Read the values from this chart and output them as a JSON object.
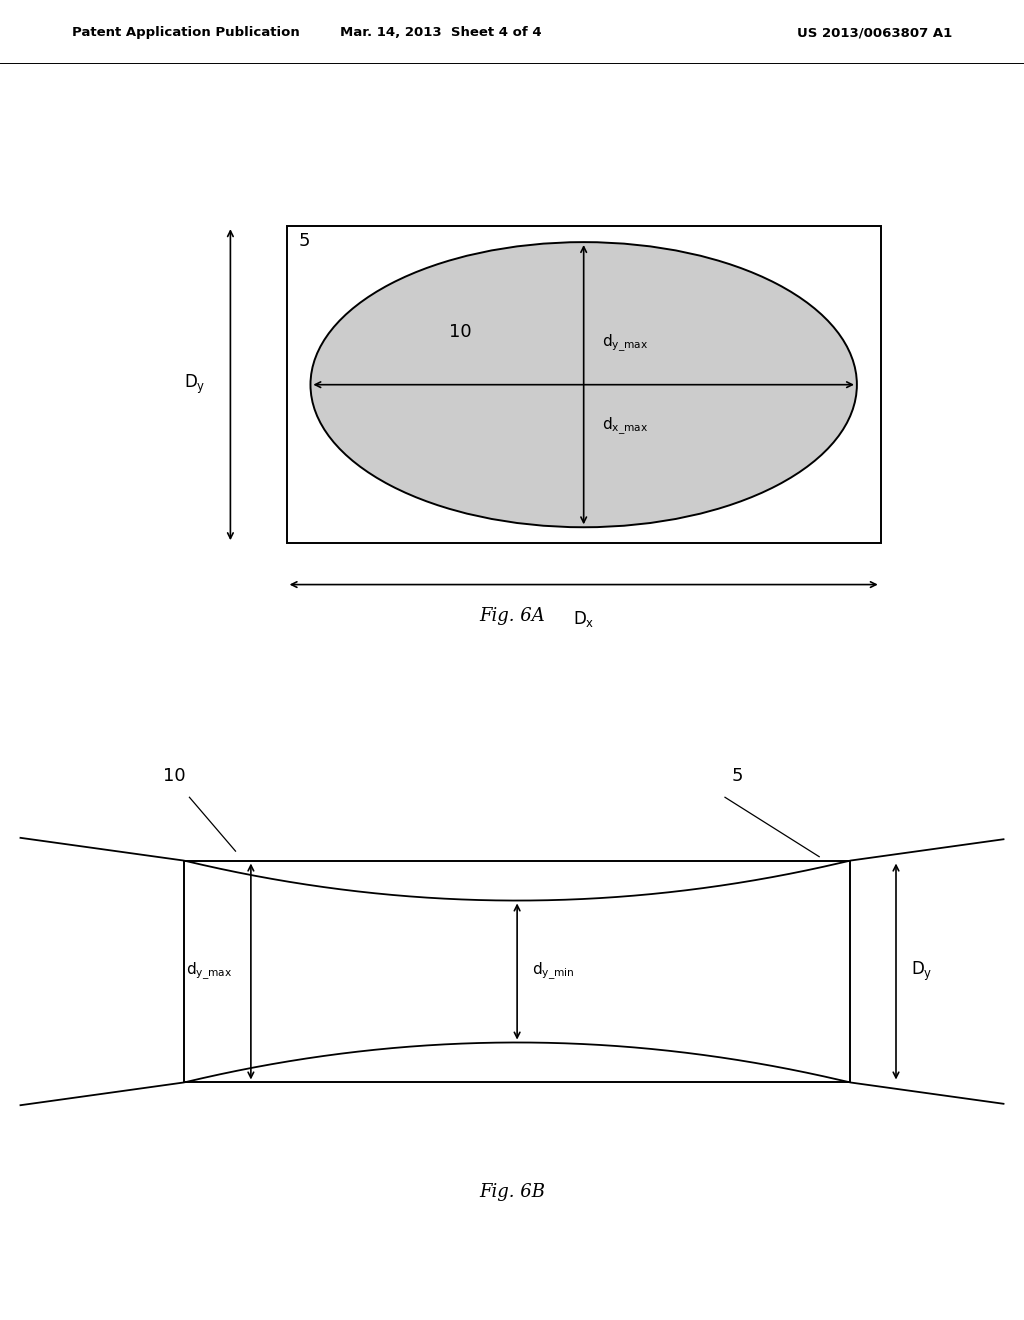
{
  "bg_color": "#ffffff",
  "header_left": "Patent Application Publication",
  "header_mid": "Mar. 14, 2013  Sheet 4 of 4",
  "header_right": "US 2013/0063807 A1",
  "fig6A_caption": "Fig. 6A",
  "fig6B_caption": "Fig. 6B",
  "ellipse_fill": "#cccccc",
  "ellipse_edge": "#000000",
  "rect_edge": "#000000",
  "line_color": "#000000",
  "text_color": "#000000",
  "arrow_style": "<->",
  "lw": 1.2
}
